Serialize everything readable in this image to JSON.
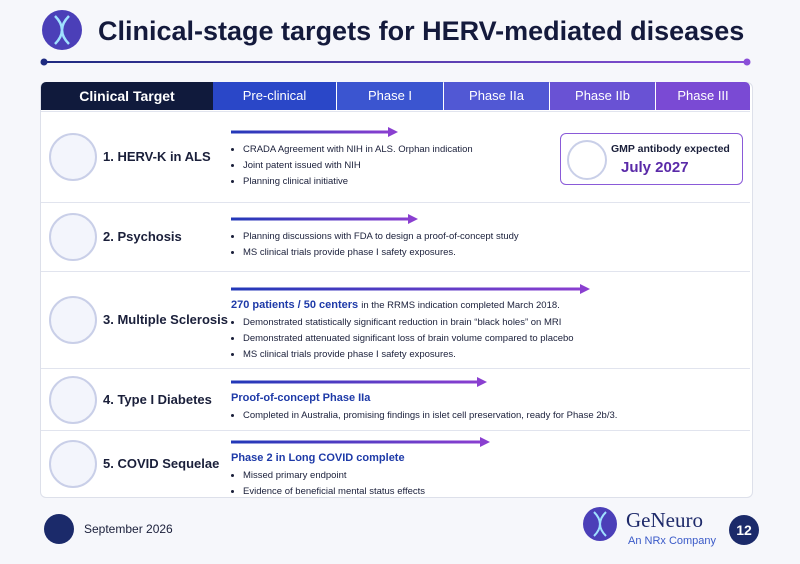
{
  "header": {
    "title": "Clinical-stage targets for HERV-mediated diseases"
  },
  "table": {
    "columns": [
      "Clinical Target",
      "Pre-clinical",
      "Phase I",
      "Phase IIa",
      "Phase IIb",
      "Phase III"
    ],
    "rows": [
      {
        "name": "1. HERV-K in ALS",
        "bullets": [
          "CRADA Agreement with NIH in ALS. Orphan indication",
          "Joint patent issued with NIH",
          "Planning clinical initiative"
        ],
        "callout": {
          "label": "GMP antibody expected",
          "date": "July 2027"
        }
      },
      {
        "name": "2. Psychosis",
        "bullets": [
          "Planning discussions with FDA to design a proof-of-concept study",
          "MS clinical trials provide phase I safety exposures."
        ]
      },
      {
        "name": "3. Multiple Sclerosis",
        "lead": "270 patients / 50 centers",
        "lead_rest": "in the RRMS indication completed March 2018.",
        "bullets": [
          "Demonstrated statistically significant reduction in brain “black holes” on MRI",
          "Demonstrated attenuated significant loss of brain volume compared to placebo",
          "MS clinical trials provide phase I safety exposures."
        ]
      },
      {
        "name": "4. Type I Diabetes",
        "lead": "Proof-of-concept Phase IIa",
        "bullets": [
          "Completed in Australia, promising findings in islet cell preservation, ready for Phase 2b/3."
        ]
      },
      {
        "name": "5. COVID Sequelae",
        "lead": "Phase 2 in Long COVID complete",
        "bullets": [
          "Missed primary endpoint",
          "Evidence of beneficial mental status effects"
        ]
      }
    ]
  },
  "footer": {
    "date": "September 2026",
    "company": "GeNeuro",
    "tagline": "An NRx Company",
    "page": "12"
  }
}
